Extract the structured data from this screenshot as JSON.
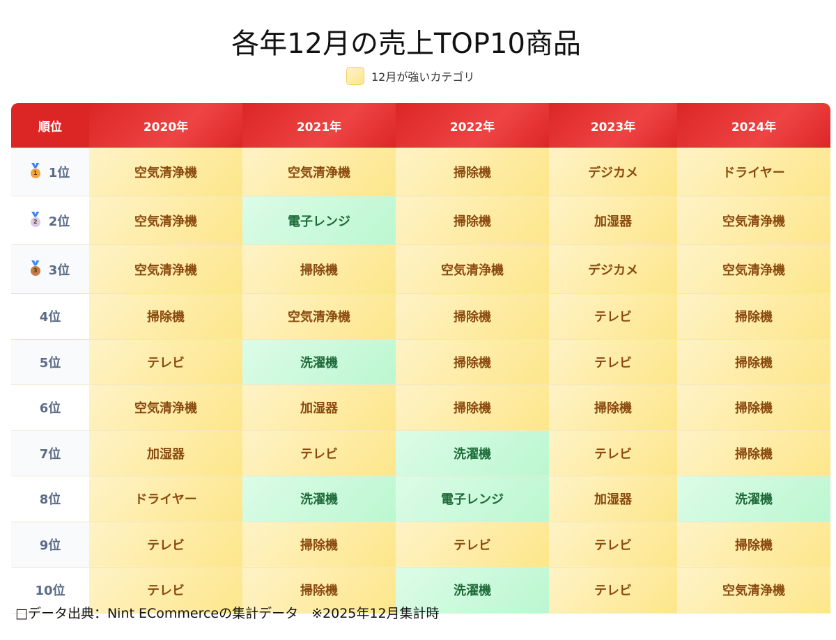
{
  "title": "各年12月の売上TOP10商品",
  "legend": {
    "label": "12月が強いカテゴリ",
    "color": "#fde68a"
  },
  "header": [
    "順位",
    "2020年",
    "2021年",
    "2022年",
    "2023年",
    "2024年"
  ],
  "colors": {
    "header": "#dc2626",
    "strong_bg": "#fde68a",
    "strong_text": "#8a4a10",
    "other_bg": "#bbf7d0",
    "other_text": "#1f6b3a"
  },
  "rows": [
    {
      "rank": "1位",
      "medal": {
        "icon": "gold-medal-icon",
        "num": "1",
        "color": "#f2a33a"
      },
      "cells": [
        [
          "空気清浄機",
          "strong"
        ],
        [
          "空気清浄機",
          "strong"
        ],
        [
          "掃除機",
          "strong"
        ],
        [
          "デジカメ",
          "strong"
        ],
        [
          "ドライヤー",
          "strong"
        ]
      ]
    },
    {
      "rank": "2位",
      "medal": {
        "icon": "silver-medal-icon",
        "num": "2",
        "color": "#d8c8ea"
      },
      "cells": [
        [
          "空気清浄機",
          "strong"
        ],
        [
          "電子レンジ",
          "other"
        ],
        [
          "掃除機",
          "strong"
        ],
        [
          "加湿器",
          "strong"
        ],
        [
          "空気清浄機",
          "strong"
        ]
      ]
    },
    {
      "rank": "3位",
      "medal": {
        "icon": "bronze-medal-icon",
        "num": "3",
        "color": "#c57a4a"
      },
      "cells": [
        [
          "空気清浄機",
          "strong"
        ],
        [
          "掃除機",
          "strong"
        ],
        [
          "空気清浄機",
          "strong"
        ],
        [
          "デジカメ",
          "strong"
        ],
        [
          "空気清浄機",
          "strong"
        ]
      ]
    },
    {
      "rank": "4位",
      "cells": [
        [
          "掃除機",
          "strong"
        ],
        [
          "空気清浄機",
          "strong"
        ],
        [
          "掃除機",
          "strong"
        ],
        [
          "テレビ",
          "strong"
        ],
        [
          "掃除機",
          "strong"
        ]
      ]
    },
    {
      "rank": "5位",
      "cells": [
        [
          "テレビ",
          "strong"
        ],
        [
          "洗濯機",
          "other"
        ],
        [
          "掃除機",
          "strong"
        ],
        [
          "テレビ",
          "strong"
        ],
        [
          "掃除機",
          "strong"
        ]
      ]
    },
    {
      "rank": "6位",
      "cells": [
        [
          "空気清浄機",
          "strong"
        ],
        [
          "加湿器",
          "strong"
        ],
        [
          "掃除機",
          "strong"
        ],
        [
          "掃除機",
          "strong"
        ],
        [
          "掃除機",
          "strong"
        ]
      ]
    },
    {
      "rank": "7位",
      "cells": [
        [
          "加湿器",
          "strong"
        ],
        [
          "テレビ",
          "strong"
        ],
        [
          "洗濯機",
          "other"
        ],
        [
          "テレビ",
          "strong"
        ],
        [
          "掃除機",
          "strong"
        ]
      ]
    },
    {
      "rank": "8位",
      "cells": [
        [
          "ドライヤー",
          "strong"
        ],
        [
          "洗濯機",
          "other"
        ],
        [
          "電子レンジ",
          "other"
        ],
        [
          "加湿器",
          "strong"
        ],
        [
          "洗濯機",
          "other"
        ]
      ]
    },
    {
      "rank": "9位",
      "cells": [
        [
          "テレビ",
          "strong"
        ],
        [
          "掃除機",
          "strong"
        ],
        [
          "テレビ",
          "strong"
        ],
        [
          "テレビ",
          "strong"
        ],
        [
          "掃除機",
          "strong"
        ]
      ]
    },
    {
      "rank": "10位",
      "cells": [
        [
          "テレビ",
          "strong"
        ],
        [
          "掃除機",
          "strong"
        ],
        [
          "洗濯機",
          "other"
        ],
        [
          "テレビ",
          "strong"
        ],
        [
          "空気清浄機",
          "strong"
        ]
      ]
    }
  ],
  "footer": "□データ出典：Nint ECommerceの集計データ　※2025年12月集計時"
}
